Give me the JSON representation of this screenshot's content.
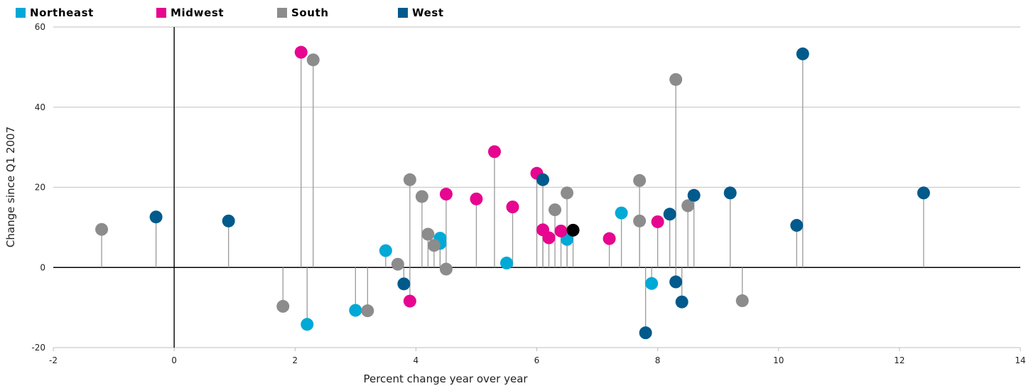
{
  "chart_data": {
    "type": "scatter",
    "style": "lollipop",
    "xlabel": "Percent change year over year",
    "ylabel": "Change since Q1 2007",
    "xlim": [
      -2,
      14
    ],
    "ylim": [
      -20,
      60
    ],
    "x_ticks": [
      "-2",
      "0",
      "2",
      "4",
      "6",
      "8",
      "10",
      "12",
      "14"
    ],
    "y_ticks": [
      "60",
      "40",
      "20",
      "0",
      "-20"
    ],
    "grid": true,
    "legend_position": "top-left",
    "series": [
      {
        "name": "Northeast",
        "color": "#00a9d6",
        "points": [
          [
            2.2,
            -14.2
          ],
          [
            3.0,
            -10.7
          ],
          [
            3.5,
            4.2
          ],
          [
            4.4,
            6.0
          ],
          [
            4.4,
            7.3
          ],
          [
            5.5,
            1.1
          ],
          [
            6.5,
            7.0
          ],
          [
            7.4,
            13.6
          ],
          [
            7.9,
            -4.0
          ]
        ]
      },
      {
        "name": "Midwest",
        "color": "#e6068f",
        "points": [
          [
            2.1,
            53.7
          ],
          [
            3.9,
            -8.4
          ],
          [
            4.5,
            18.3
          ],
          [
            5.0,
            17.1
          ],
          [
            5.3,
            28.9
          ],
          [
            5.6,
            15.1
          ],
          [
            6.0,
            23.5
          ],
          [
            6.1,
            9.4
          ],
          [
            6.2,
            7.4
          ],
          [
            6.4,
            9.1
          ],
          [
            7.2,
            7.2
          ],
          [
            8.0,
            11.4
          ]
        ]
      },
      {
        "name": "South",
        "color": "#8c8c8c",
        "points": [
          [
            -1.2,
            9.5
          ],
          [
            1.8,
            -9.7
          ],
          [
            2.3,
            51.8
          ],
          [
            3.2,
            -10.8
          ],
          [
            3.7,
            0.8
          ],
          [
            3.9,
            21.9
          ],
          [
            4.1,
            17.7
          ],
          [
            4.2,
            8.3
          ],
          [
            4.3,
            5.5
          ],
          [
            4.5,
            -0.4
          ],
          [
            6.3,
            14.4
          ],
          [
            6.5,
            18.6
          ],
          [
            7.7,
            21.7
          ],
          [
            7.7,
            11.6
          ],
          [
            8.3,
            46.9
          ],
          [
            8.5,
            15.4
          ],
          [
            9.4,
            -8.3
          ]
        ]
      },
      {
        "name": "West",
        "color": "#005a8c",
        "points": [
          [
            -0.3,
            12.6
          ],
          [
            0.9,
            11.6
          ],
          [
            3.8,
            -4.1
          ],
          [
            6.1,
            21.9
          ],
          [
            7.8,
            -16.3
          ],
          [
            8.2,
            13.3
          ],
          [
            8.3,
            -3.6
          ],
          [
            8.4,
            -8.6
          ],
          [
            8.6,
            18.0
          ],
          [
            9.2,
            18.6
          ],
          [
            10.3,
            10.5
          ],
          [
            10.4,
            53.3
          ],
          [
            12.4,
            18.6
          ]
        ]
      }
    ],
    "highlight": {
      "color": "#000000",
      "points": [
        [
          6.6,
          9.3
        ]
      ]
    }
  }
}
